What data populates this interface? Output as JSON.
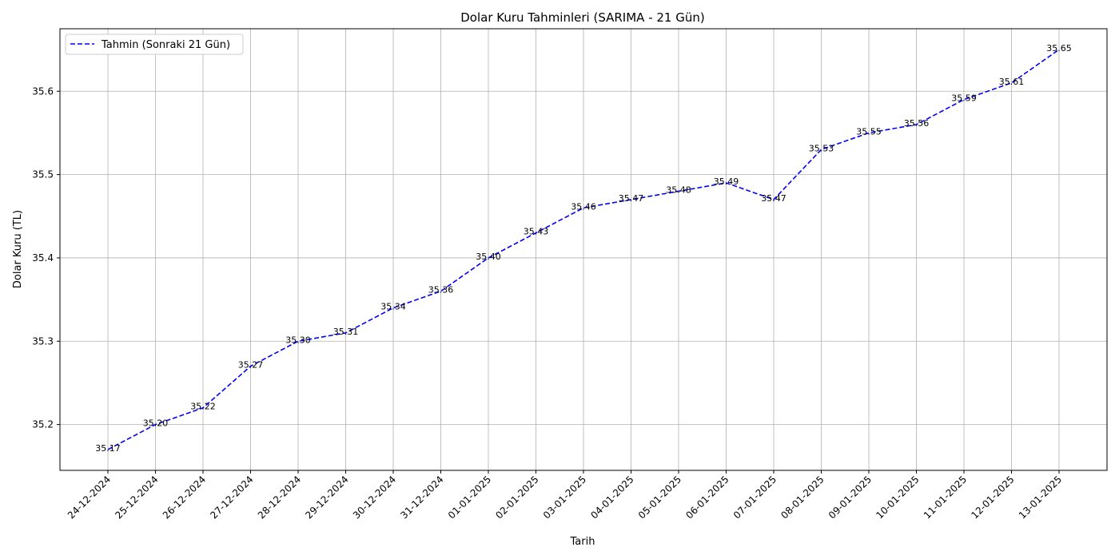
{
  "chart_data": {
    "type": "line",
    "title": "Dolar Kuru Tahminleri (SARIMA - 21 Gün)",
    "xlabel": "Tarih",
    "ylabel": "Dolar Kuru (TL)",
    "categories": [
      "24-12-2024",
      "25-12-2024",
      "26-12-2024",
      "27-12-2024",
      "28-12-2024",
      "29-12-2024",
      "30-12-2024",
      "31-12-2024",
      "01-01-2025",
      "02-01-2025",
      "03-01-2025",
      "04-01-2025",
      "05-01-2025",
      "06-01-2025",
      "07-01-2025",
      "08-01-2025",
      "09-01-2025",
      "10-01-2025",
      "11-01-2025",
      "12-01-2025",
      "13-01-2025"
    ],
    "series": [
      {
        "name": "Tahmin (Sonraki 21 Gün)",
        "values": [
          35.17,
          35.2,
          35.22,
          35.27,
          35.3,
          35.31,
          35.34,
          35.36,
          35.4,
          35.43,
          35.46,
          35.47,
          35.48,
          35.49,
          35.47,
          35.53,
          35.55,
          35.56,
          35.59,
          35.61,
          35.65
        ],
        "labels": [
          "35.17",
          "35.20",
          "35.22",
          "35.27",
          "35.30",
          "35.31",
          "35.34",
          "35.36",
          "35.40",
          "35.43",
          "35.46",
          "35.47",
          "35.48",
          "35.49",
          "35.47",
          "35.53",
          "35.55",
          "35.56",
          "35.59",
          "35.61",
          "35.65"
        ],
        "color": "#0000ff",
        "line_style": "dashed"
      }
    ],
    "ylim": [
      35.145,
      35.675
    ],
    "yticks": [
      35.2,
      35.3,
      35.4,
      35.5,
      35.6
    ],
    "ytick_labels": [
      "35.2",
      "35.3",
      "35.4",
      "35.5",
      "35.6"
    ],
    "grid": true,
    "legend_position": "top-left"
  }
}
